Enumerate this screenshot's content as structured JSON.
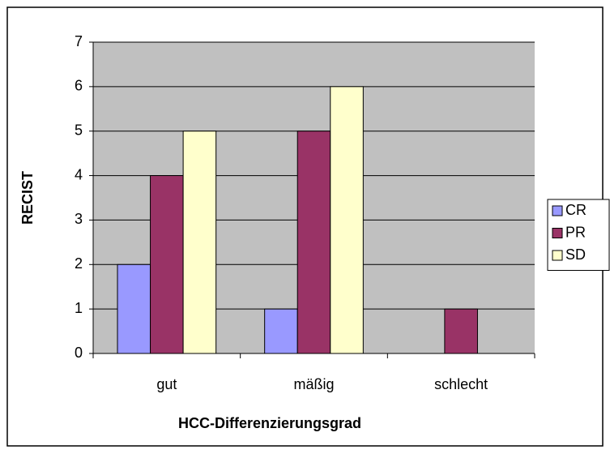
{
  "chart_data": {
    "type": "bar",
    "xlabel": "HCC-Differenzierungsgrad",
    "ylabel": "RECIST",
    "categories": [
      "gut",
      "mäßig",
      "schlecht"
    ],
    "series": [
      {
        "name": "CR",
        "color": "#9999ff",
        "values": [
          2,
          1,
          0
        ]
      },
      {
        "name": "PR",
        "color": "#993366",
        "values": [
          4,
          5,
          1
        ]
      },
      {
        "name": "SD",
        "color": "#ffffcc",
        "values": [
          5,
          6,
          0
        ]
      }
    ],
    "ylim": [
      0,
      7
    ],
    "yticks": [
      0,
      1,
      2,
      3,
      4,
      5,
      6,
      7
    ],
    "grid": true,
    "legend": "right"
  }
}
